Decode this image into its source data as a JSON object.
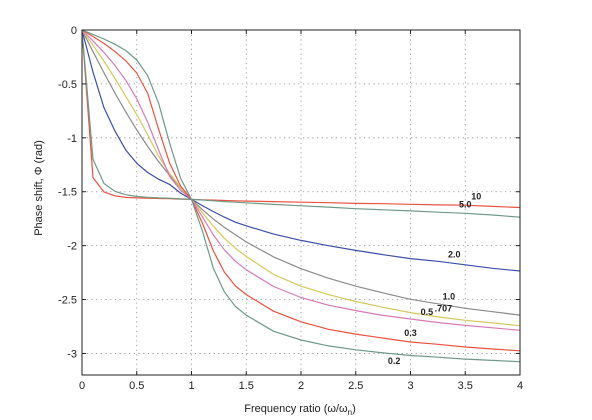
{
  "chart_data": {
    "type": "line",
    "title": "",
    "xlabel": "Frequency ratio (ω/ω",
    "xlabel_sub": "n",
    "xlabel_end": ")",
    "ylabel": "Phase shift, Φ (rad)",
    "xlim": [
      0,
      4
    ],
    "ylim": [
      -3.2,
      0
    ],
    "grid": true,
    "legend": "none",
    "xticks": [
      0,
      0.5,
      1,
      1.5,
      2,
      2.5,
      3,
      3.5,
      4
    ],
    "xtick_labels": [
      "0",
      "0.5",
      "1",
      "1.5",
      "2",
      "2.5",
      "3",
      "3.5",
      "4"
    ],
    "yticks": [
      0,
      -0.5,
      -1,
      -1.5,
      -2,
      -2.5,
      -3
    ],
    "ytick_labels": [
      "0",
      "-0.5",
      "-1",
      "-1.5",
      "-2",
      "-2.5",
      "-3"
    ],
    "x": [
      0,
      0.1,
      0.2,
      0.3,
      0.4,
      0.5,
      0.6,
      0.7,
      0.8,
      0.9,
      1.0,
      1.1,
      1.2,
      1.3,
      1.4,
      1.5,
      1.75,
      2.0,
      2.25,
      2.5,
      2.75,
      3.0,
      3.25,
      3.5,
      3.75,
      4.0
    ],
    "series": [
      {
        "name": "10",
        "color": "#e8533f",
        "label": "10",
        "values": [
          0,
          -1.3704,
          -1.5017,
          -1.538,
          -1.5527,
          -1.5575,
          -1.5603,
          -1.5625,
          -1.5651,
          -1.5683,
          -1.5708,
          -1.5746,
          -1.5781,
          -1.5812,
          -1.584,
          -1.5866,
          -1.5919,
          -1.5975,
          -1.6017,
          -1.6083,
          -1.6113,
          -1.6166,
          -1.6219,
          -1.625,
          -1.6365,
          -1.6468
        ]
      },
      {
        "name": "5.0",
        "color": "#6f9a88",
        "label": "5.0",
        "values": [
          0,
          -1.1986,
          -1.4226,
          -1.4965,
          -1.5281,
          -1.5444,
          -1.5519,
          -1.5574,
          -1.5605,
          -1.5668,
          -1.5708,
          -1.5771,
          -1.584,
          -1.5916,
          -1.5971,
          -1.6027,
          -1.6177,
          -1.6308,
          -1.643,
          -1.6578,
          -1.6681,
          -1.6782,
          -1.6896,
          -1.7006,
          -1.716,
          -1.7364
        ]
      },
      {
        "name": "2.0",
        "color": "#3c4fa8",
        "label": "2.0",
        "values": [
          0,
          -0.3907,
          -0.7188,
          -0.9337,
          -1.1141,
          -1.2362,
          -1.3215,
          -1.384,
          -1.4318,
          -1.5126,
          -1.5708,
          -1.6286,
          -1.684,
          -1.7356,
          -1.7828,
          -1.8157,
          -1.893,
          -1.9514,
          -2.0011,
          -2.0446,
          -2.0842,
          -2.1207,
          -2.1456,
          -2.178,
          -2.21,
          -2.2351
        ]
      },
      {
        "name": "1.0",
        "color": "#8b8b8b",
        "label": "1.0",
        "values": [
          0,
          -0.2014,
          -0.3948,
          -0.5829,
          -0.761,
          -0.9273,
          -1.0808,
          -1.2209,
          -1.3485,
          -1.4639,
          -1.5708,
          -1.6664,
          -1.7538,
          -1.8301,
          -1.8993,
          -1.9656,
          -2.1046,
          -2.2143,
          -2.3026,
          -2.376,
          -2.4383,
          -2.4981,
          -2.5395,
          -2.5809,
          -2.6129,
          -2.6441
        ]
      },
      {
        "name": ".707",
        "color": "#d4c85a",
        "label": ".707",
        "values": [
          0,
          -0.1407,
          -0.2874,
          -0.4473,
          -0.6162,
          -0.7853,
          -0.973,
          -1.1693,
          -1.3305,
          -1.4609,
          -1.5708,
          -1.695,
          -1.8199,
          -1.9309,
          -2.0229,
          -2.101,
          -2.2681,
          -2.3761,
          -2.4543,
          -2.5179,
          -2.5718,
          -2.6209,
          -2.6608,
          -2.6929,
          -2.7168,
          -2.7426
        ]
      },
      {
        "name": "0.5",
        "color": "#d77bb6",
        "label": "0.5",
        "values": [
          0,
          -0.1009,
          -0.2068,
          -0.3274,
          -0.4667,
          -0.6402,
          -0.8548,
          -1.1131,
          -1.3588,
          -1.4863,
          -1.5708,
          -1.7329,
          -1.9019,
          -2.0391,
          -2.1441,
          -2.2246,
          -2.3788,
          -2.4812,
          -2.553,
          -2.6031,
          -2.6469,
          -2.6806,
          -2.7133,
          -2.7401,
          -2.7626,
          -2.7854
        ]
      },
      {
        "name": "0.3",
        "color": "#e8533f",
        "label": "0.3",
        "values": [
          0,
          -0.0606,
          -0.1246,
          -0.1981,
          -0.2858,
          -0.3998,
          -0.588,
          -0.9204,
          -1.2341,
          -1.4469,
          -1.5708,
          -1.7912,
          -2.0498,
          -2.2446,
          -2.3736,
          -2.4543,
          -2.6086,
          -2.7062,
          -2.776,
          -2.821,
          -2.8576,
          -2.8936,
          -2.9157,
          -2.94,
          -2.9586,
          -2.9754
        ]
      },
      {
        "name": "0.2",
        "color": "#6f9a88",
        "label": "0.2",
        "values": [
          0,
          -0.0404,
          -0.0832,
          -0.1315,
          -0.1903,
          -0.2783,
          -0.4242,
          -0.6787,
          -1.0484,
          -1.3754,
          -1.5708,
          -1.8657,
          -2.2113,
          -2.4283,
          -2.5641,
          -2.645,
          -2.7944,
          -2.8758,
          -2.9301,
          -2.9659,
          -2.995,
          -3.019,
          -3.0352,
          -3.0521,
          -3.0647,
          -3.0768
        ]
      }
    ]
  }
}
